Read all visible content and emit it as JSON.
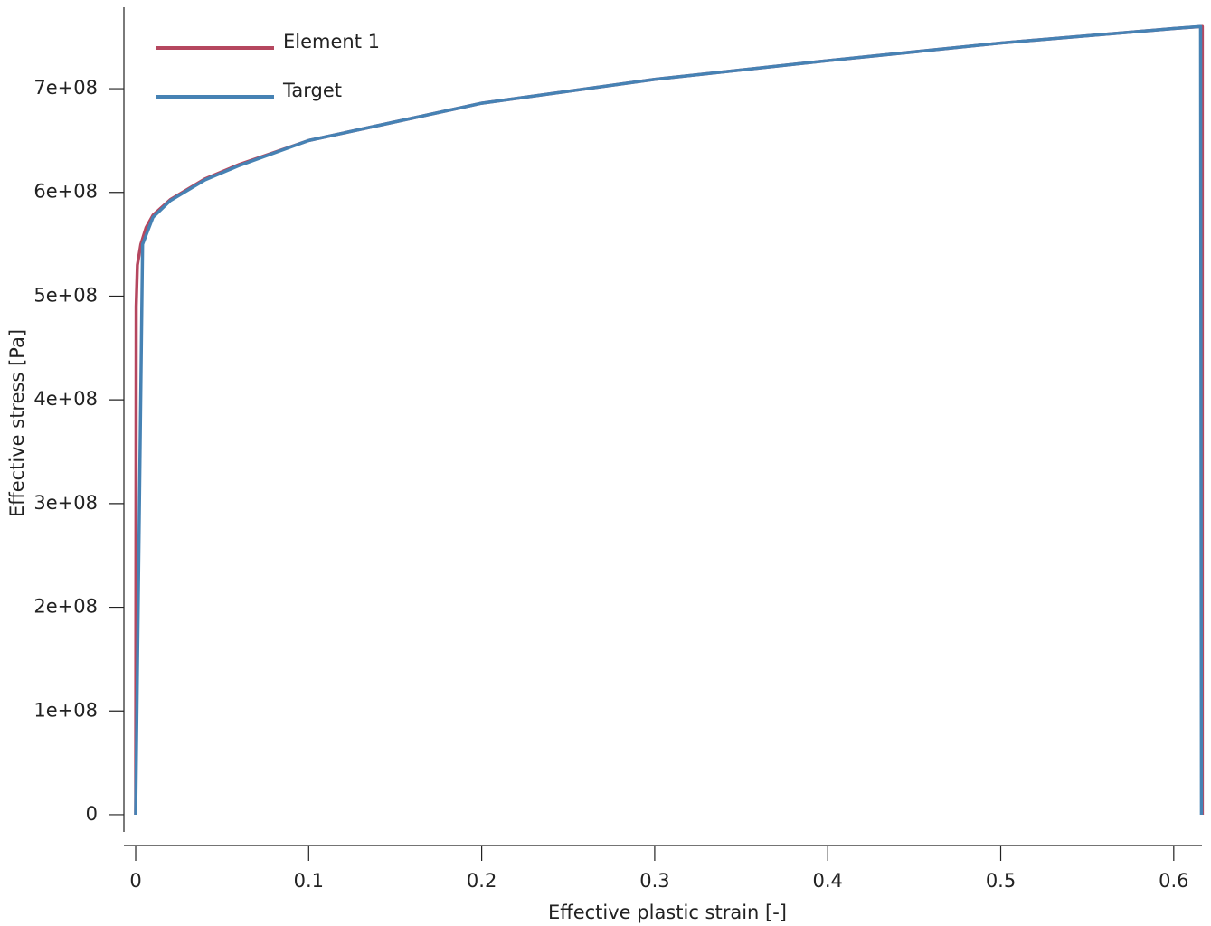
{
  "chart_data": {
    "type": "line",
    "xlabel": "Effective plastic strain [-]",
    "ylabel": "Effective stress [Pa]",
    "xlim": [
      -0.0068,
      0.6163
    ],
    "ylim": [
      -16600000,
      778500000
    ],
    "xticks": [
      0,
      0.1,
      0.2,
      0.3,
      0.4,
      0.5,
      0.6
    ],
    "yticks": [
      0,
      {
        "value": 100000000,
        "label": "1e+08"
      },
      {
        "value": 200000000,
        "label": "2e+08"
      },
      {
        "value": 300000000,
        "label": "3e+08"
      },
      {
        "value": 400000000,
        "label": "4e+08"
      },
      {
        "value": 500000000,
        "label": "5e+08"
      },
      {
        "value": 600000000,
        "label": "6e+08"
      },
      {
        "value": 700000000,
        "label": "7e+08"
      }
    ],
    "legend": "upper left",
    "series": [
      {
        "name": "Element 1",
        "color": "#b5475f",
        "x": [
          0,
          0.0003,
          0.001,
          0.003,
          0.006,
          0.01,
          0.02,
          0.04,
          0.06,
          0.1,
          0.15,
          0.2,
          0.3,
          0.4,
          0.5,
          0.6,
          0.6165,
          0.6165
        ],
        "values": [
          0,
          490000000,
          530000000,
          550000000,
          566000000,
          578000000,
          593000000,
          613000000,
          627000000,
          650000000,
          668000000,
          686000000,
          709000000,
          727000000,
          744000000,
          758000000,
          760000000,
          0
        ]
      },
      {
        "name": "Target",
        "color": "#4682b4",
        "x": [
          0,
          0.004,
          0.01,
          0.02,
          0.04,
          0.06,
          0.1,
          0.15,
          0.2,
          0.3,
          0.4,
          0.5,
          0.6,
          0.6155,
          0.616
        ],
        "values": [
          0,
          550000000,
          576000000,
          592000000,
          612000000,
          626000000,
          650000000,
          668000000,
          686000000,
          709000000,
          727000000,
          744000000,
          758000000,
          760000000,
          0
        ]
      }
    ]
  }
}
